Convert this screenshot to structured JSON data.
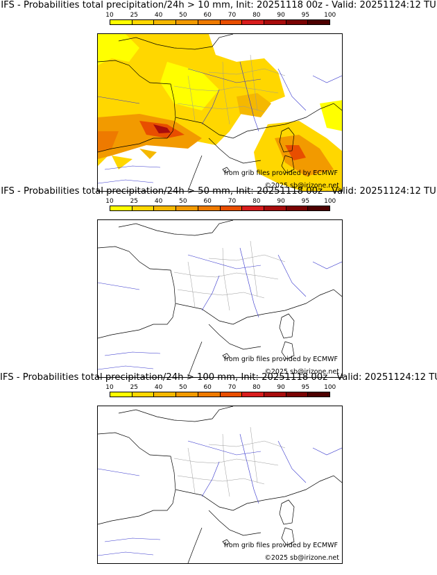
{
  "colorbar": {
    "ticks": [
      "10",
      "25",
      "40",
      "50",
      "60",
      "70",
      "80",
      "90",
      "95",
      "100"
    ],
    "colors": [
      "#ffff00",
      "#ffd700",
      "#f5b800",
      "#f29a00",
      "#ee7a00",
      "#e84e00",
      "#d81d1d",
      "#a80c0c",
      "#7a0303",
      "#4d0000"
    ]
  },
  "credits": {
    "source": "from grib files provided by ECMWF",
    "copyright": "©2025 sb@irizone.net"
  },
  "panels": [
    {
      "title": "IFS - Probabilities total precipitation/24h > 10 mm, Init: 20251118 00z - Valid: 20251124:12 TU",
      "shading": "high"
    },
    {
      "title": "IFS - Probabilities total precipitation/24h > 50 mm, Init: 20251118 00z - Valid: 20251124:12 TU",
      "shading": "none"
    },
    {
      "title": "IFS - Probabilities total precipitation/24h > 100 mm, Init: 20251118 00z - Valid: 20251124:12 TU",
      "shading": "none"
    }
  ]
}
